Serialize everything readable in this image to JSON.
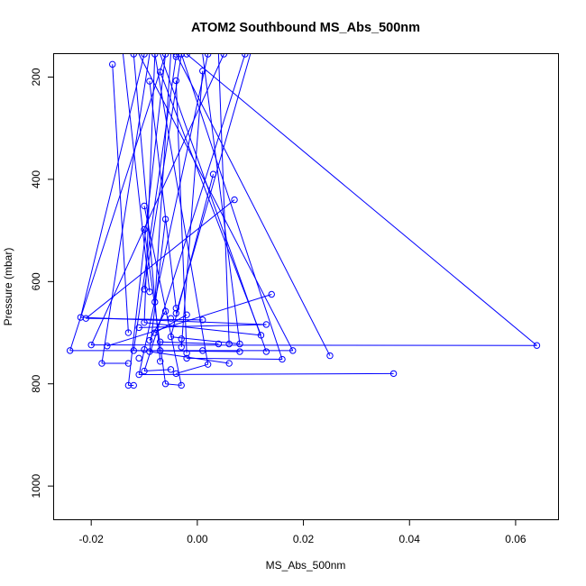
{
  "chart_data": {
    "type": "line",
    "title": "ATOM2 Southbound MS_Abs_500nm",
    "xlabel": "MS_Abs_500nm",
    "ylabel": "Pressure (mbar)",
    "xlim": [
      -0.027,
      0.068
    ],
    "ylim": [
      1065,
      155
    ],
    "y_reversed": true,
    "x_ticks": [
      -0.02,
      0.0,
      0.02,
      0.04,
      0.06
    ],
    "x_tick_labels": [
      "-0.02",
      "0.00",
      "0.02",
      "0.04",
      "0.06"
    ],
    "y_ticks": [
      200,
      400,
      600,
      800,
      1000
    ],
    "y_tick_labels": [
      "200",
      "400",
      "600",
      "800",
      "1000"
    ],
    "grid": false,
    "series_color": "#0000ff",
    "series": [
      {
        "points": [
          [
            -0.008,
            155
          ],
          [
            -0.016,
            175
          ],
          [
            -0.004,
            160
          ],
          [
            -0.009,
            208
          ],
          [
            -0.007,
            190
          ],
          [
            -0.004,
            207
          ],
          [
            0.001,
            188
          ],
          [
            -0.01,
            155
          ],
          [
            -0.003,
            155
          ],
          [
            0.005,
            155
          ],
          [
            -0.006,
            155
          ],
          [
            0.002,
            155
          ],
          [
            -0.012,
            155
          ],
          [
            0.003,
            390
          ],
          [
            0.007,
            440
          ],
          [
            -0.01,
            452
          ],
          [
            -0.006,
            478
          ],
          [
            -0.01,
            498
          ],
          [
            -0.002,
            155
          ],
          [
            0.009,
            155
          ],
          [
            -0.004,
            155
          ],
          [
            -0.01,
            615
          ],
          [
            0.014,
            625
          ],
          [
            -0.008,
            640
          ],
          [
            -0.009,
            620
          ],
          [
            -0.004,
            652
          ],
          [
            -0.006,
            658
          ],
          [
            -0.004,
            662
          ],
          [
            -0.002,
            665
          ],
          [
            -0.005,
            672
          ],
          [
            -0.022,
            670
          ],
          [
            -0.021,
            672
          ],
          [
            -0.01,
            680
          ],
          [
            0.001,
            675
          ],
          [
            -0.011,
            690
          ],
          [
            0.013,
            684
          ],
          [
            -0.013,
            700
          ],
          [
            -0.008,
            700
          ],
          [
            0.012,
            705
          ],
          [
            -0.005,
            708
          ],
          [
            -0.003,
            712
          ],
          [
            -0.009,
            715
          ],
          [
            -0.007,
            718
          ],
          [
            0.004,
            722
          ],
          [
            0.006,
            722
          ],
          [
            0.008,
            722
          ],
          [
            -0.02,
            724
          ],
          [
            -0.017,
            726
          ],
          [
            -0.003,
            728
          ],
          [
            0.064,
            725
          ],
          [
            -0.024,
            735
          ],
          [
            -0.012,
            735
          ],
          [
            -0.01,
            733
          ],
          [
            -0.009,
            737
          ],
          [
            -0.007,
            735
          ],
          [
            -0.002,
            740
          ],
          [
            0.001,
            735
          ],
          [
            0.008,
            737
          ],
          [
            0.013,
            737
          ],
          [
            0.018,
            735
          ],
          [
            0.025,
            745
          ],
          [
            0.016,
            752
          ],
          [
            -0.011,
            750
          ],
          [
            -0.007,
            756
          ],
          [
            -0.002,
            750
          ],
          [
            -0.018,
            760
          ],
          [
            -0.013,
            760
          ],
          [
            0.002,
            762
          ],
          [
            0.006,
            760
          ],
          [
            -0.01,
            775
          ],
          [
            -0.005,
            772
          ],
          [
            0.037,
            780
          ],
          [
            -0.011,
            782
          ],
          [
            -0.004,
            780
          ],
          [
            -0.013,
            803
          ],
          [
            -0.012,
            803
          ],
          [
            -0.006,
            800
          ],
          [
            -0.003,
            803
          ]
        ],
        "segments": [
          [
            -0.016,
            175,
            -0.013,
            700
          ],
          [
            -0.008,
            155,
            -0.01,
            680
          ],
          [
            -0.004,
            160,
            -0.012,
            735
          ],
          [
            -0.009,
            208,
            -0.004,
            652
          ],
          [
            -0.007,
            190,
            0.012,
            705
          ],
          [
            -0.004,
            207,
            -0.002,
            740
          ],
          [
            0.001,
            188,
            -0.003,
            728
          ],
          [
            -0.01,
            155,
            -0.022,
            670
          ],
          [
            -0.003,
            155,
            0.016,
            752
          ],
          [
            0.005,
            155,
            -0.02,
            724
          ],
          [
            -0.006,
            155,
            -0.013,
            803
          ],
          [
            0.002,
            155,
            -0.011,
            782
          ],
          [
            -0.012,
            155,
            -0.007,
            756
          ],
          [
            0.003,
            390,
            -0.005,
            708
          ],
          [
            0.007,
            440,
            -0.021,
            672
          ],
          [
            -0.01,
            452,
            -0.003,
            803
          ],
          [
            -0.006,
            478,
            -0.009,
            737
          ],
          [
            -0.01,
            498,
            -0.006,
            800
          ],
          [
            -0.002,
            155,
            0.064,
            725
          ],
          [
            0.009,
            155,
            -0.01,
            775
          ],
          [
            -0.004,
            155,
            0.025,
            745
          ],
          [
            -0.006,
            155,
            -0.024,
            735
          ],
          [
            -0.011,
            155,
            0.018,
            735
          ],
          [
            -0.009,
            155,
            -0.018,
            760
          ],
          [
            0.001,
            155,
            0.008,
            722
          ],
          [
            -0.007,
            155,
            0.013,
            737
          ],
          [
            -0.005,
            155,
            -0.008,
            640
          ],
          [
            0.004,
            155,
            0.006,
            722
          ],
          [
            -0.014,
            155,
            -0.009,
            620
          ],
          [
            -0.003,
            155,
            -0.01,
            615
          ],
          [
            0.01,
            155,
            -0.004,
            662
          ],
          [
            -0.008,
            155,
            0.002,
            762
          ],
          [
            0.014,
            625,
            -0.017,
            726
          ],
          [
            -0.022,
            670,
            0.013,
            684
          ],
          [
            -0.021,
            672,
            0.001,
            675
          ],
          [
            -0.02,
            724,
            0.064,
            725
          ],
          [
            -0.024,
            735,
            0.018,
            735
          ],
          [
            -0.018,
            760,
            -0.013,
            760
          ],
          [
            -0.013,
            803,
            -0.012,
            803
          ],
          [
            -0.011,
            782,
            0.037,
            780
          ],
          [
            -0.01,
            775,
            -0.005,
            772
          ],
          [
            -0.006,
            800,
            -0.003,
            803
          ],
          [
            -0.012,
            735,
            0.008,
            737
          ],
          [
            -0.01,
            680,
            0.012,
            705
          ],
          [
            -0.011,
            690,
            0.013,
            684
          ],
          [
            -0.009,
            737,
            0.006,
            760
          ],
          [
            -0.007,
            718,
            0.004,
            722
          ],
          [
            -0.008,
            700,
            -0.002,
            665
          ],
          [
            -0.005,
            708,
            0.008,
            722
          ],
          [
            -0.002,
            750,
            0.016,
            752
          ],
          [
            -0.009,
            715,
            -0.006,
            658
          ],
          [
            -0.004,
            780,
            0.002,
            762
          ]
        ]
      }
    ]
  }
}
